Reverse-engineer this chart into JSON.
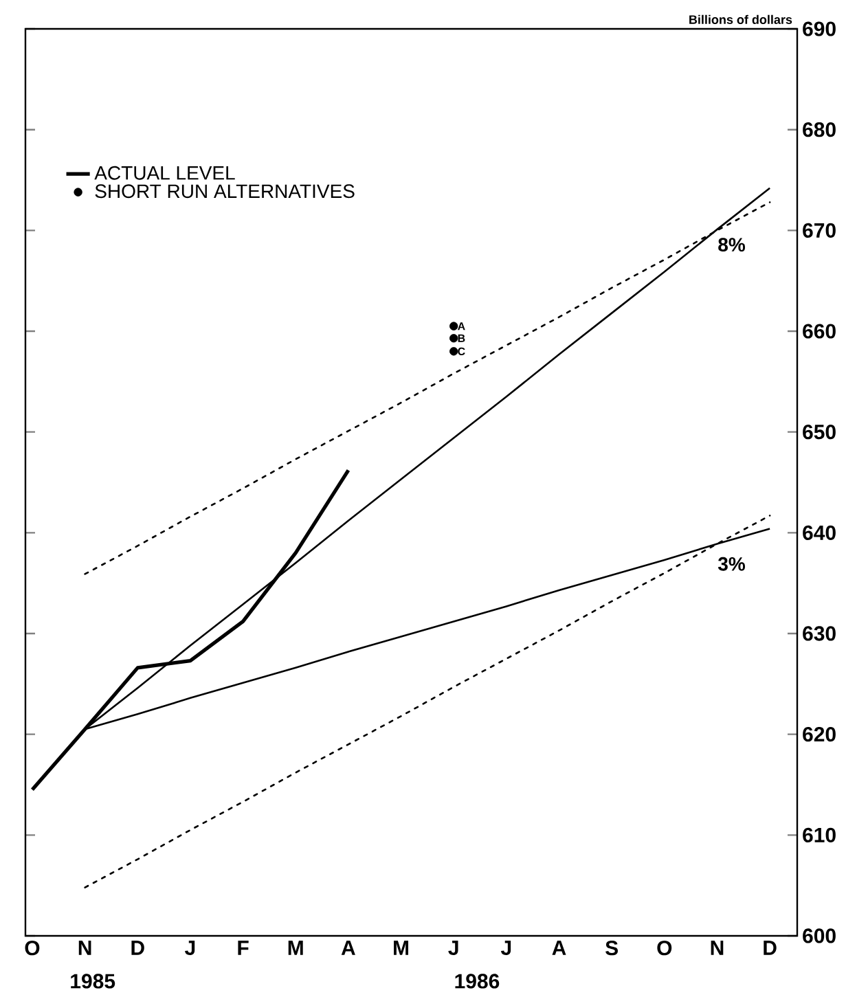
{
  "chart_data": {
    "type": "line",
    "ylabel": "Billions of dollars",
    "legend": "top left",
    "ylim": [
      600,
      690
    ],
    "yticks": [
      600,
      610,
      620,
      630,
      640,
      650,
      660,
      670,
      680,
      690
    ],
    "categories": [
      "O",
      "N",
      "D",
      "J",
      "F",
      "M",
      "A",
      "M",
      "J",
      "J",
      "A",
      "S",
      "O",
      "N",
      "D"
    ],
    "series": [
      {
        "name": "ACTUAL LEVEL",
        "color": "#000000",
        "line_style": "solid",
        "values": [
          614.5,
          620.5,
          626.6,
          627.3,
          631.2,
          638.0,
          646.2,
          null,
          null,
          null,
          null,
          null,
          null,
          null,
          null
        ]
      },
      {
        "color": "#000000",
        "line_style": "solid",
        "values": [
          null,
          620.5,
          624.6,
          628.8,
          632.9,
          637.0,
          641.2,
          645.3,
          649.4,
          653.5,
          657.7,
          661.8,
          665.9,
          670.1,
          674.2
        ]
      },
      {
        "color": "#000000",
        "line_style": "solid",
        "values": [
          null,
          620.5,
          622.0,
          623.6,
          625.1,
          626.6,
          628.2,
          629.7,
          631.2,
          632.7,
          634.3,
          635.8,
          637.3,
          638.9,
          640.4
        ]
      },
      {
        "color": "#000000",
        "line_style": "dotted",
        "values": [
          null,
          635.9,
          638.7,
          641.6,
          644.4,
          647.3,
          650.1,
          652.9,
          655.8,
          658.6,
          661.4,
          664.3,
          667.1,
          670.0,
          672.8
        ]
      },
      {
        "color": "#000000",
        "line_style": "dotted",
        "values": [
          null,
          604.8,
          607.6,
          610.5,
          613.3,
          616.2,
          619.0,
          621.8,
          624.7,
          627.5,
          630.3,
          633.2,
          636.0,
          638.9,
          641.7
        ]
      },
      {
        "type": "scatter",
        "name": "SHORT RUN ALTERNATIVES",
        "color": "#000000",
        "values": [
          null,
          null,
          null,
          null,
          null,
          null,
          null,
          null,
          660.5,
          null,
          null,
          null,
          null,
          null,
          null
        ],
        "value_labels": [
          null,
          null,
          null,
          null,
          null,
          null,
          null,
          null,
          "A",
          null,
          null,
          null,
          null,
          null,
          null
        ]
      },
      {
        "type": "scatter",
        "color": "#000000",
        "values": [
          null,
          null,
          null,
          null,
          null,
          null,
          null,
          null,
          659.3,
          null,
          null,
          null,
          null,
          null,
          null
        ],
        "value_labels": [
          null,
          null,
          null,
          null,
          null,
          null,
          null,
          null,
          "B",
          null,
          null,
          null,
          null,
          null,
          null
        ]
      },
      {
        "type": "scatter",
        "color": "#000000",
        "values": [
          null,
          null,
          null,
          null,
          null,
          null,
          null,
          null,
          658.0,
          null,
          null,
          null,
          null,
          null,
          null
        ],
        "value_labels": [
          null,
          null,
          null,
          null,
          null,
          null,
          null,
          null,
          "C",
          null,
          null,
          null,
          null,
          null,
          null
        ]
      }
    ],
    "annotations": [
      "8%",
      "3%",
      "1985",
      "1986"
    ]
  }
}
